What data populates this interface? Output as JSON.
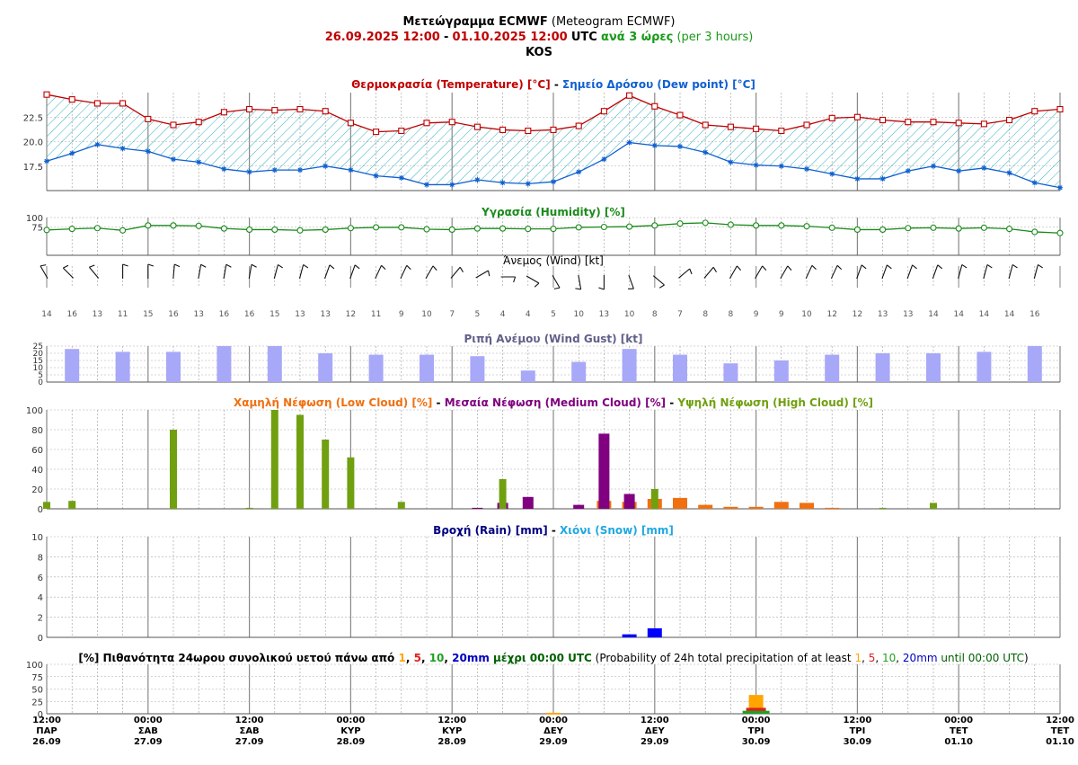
{
  "header": {
    "title_gr": "Μετεώγραμμα ECMWF",
    "title_en": "(Meteogram ECMWF)",
    "date_from": "26.09.2025 12:00",
    "dash": "-",
    "date_to": "01.10.2025 12:00",
    "utc": "UTC",
    "step_gr": "ανά 3 ώρες",
    "step_en": "(per 3 hours)",
    "location": "KOS"
  },
  "colors": {
    "temperature": "#c00000",
    "dewpoint": "#1060d0",
    "hatch": "#30b0c0",
    "humidity": "#1a8a1a",
    "gust": "#a8a8f8",
    "low_cloud": "#f07010",
    "medium_cloud": "#800080",
    "high_cloud": "#70a010",
    "rain": "#0000ff",
    "prob_1mm": "#ffa500",
    "prob_5mm": "#e02020",
    "prob_10mm": "#20a020",
    "prob_20mm": "#0000c0"
  },
  "chart_data": [
    {
      "type": "line",
      "panel": "temperature",
      "title_parts": [
        {
          "text": "Θερμοκρασία (Temperature) [°C]",
          "role": "temperature"
        },
        {
          "text": " - ",
          "role": "sep"
        },
        {
          "text": "Σημείο Δρόσου (Dew point) [°C]",
          "role": "dewpoint"
        }
      ],
      "ylim": [
        15.0,
        25.0
      ],
      "yticks": [
        "17.5",
        "20.0",
        "22.5"
      ],
      "series": [
        {
          "name": "Θερμοκρασία (Temperature) [°C]",
          "values": [
            24.8,
            24.3,
            23.9,
            23.9,
            22.3,
            21.7,
            22.0,
            23.0,
            23.3,
            23.2,
            23.3,
            23.1,
            21.9,
            21.0,
            21.1,
            21.9,
            22.0,
            21.5,
            21.2,
            21.1,
            21.2,
            21.6,
            23.1,
            24.7,
            23.6,
            22.7,
            21.7,
            21.5,
            21.3,
            21.1,
            21.7,
            22.4,
            22.5,
            22.2,
            22.0,
            22.0,
            21.9,
            21.8,
            22.2,
            23.1,
            23.3
          ]
        },
        {
          "name": "Σημείο Δρόσου (Dew point) [°C]",
          "values": [
            18.0,
            18.8,
            19.7,
            19.3,
            19.0,
            18.2,
            17.9,
            17.2,
            16.9,
            17.1,
            17.1,
            17.5,
            17.1,
            16.5,
            16.3,
            15.6,
            15.6,
            16.1,
            15.8,
            15.7,
            15.9,
            16.9,
            18.2,
            19.9,
            19.6,
            19.5,
            18.9,
            17.9,
            17.6,
            17.5,
            17.2,
            16.7,
            16.2,
            16.2,
            17.0,
            17.5,
            17.0,
            17.3,
            16.8,
            15.8,
            15.3
          ]
        }
      ]
    },
    {
      "type": "line",
      "panel": "humidity",
      "title_parts": [
        {
          "text": "Υγρασία (Humidity) [%]",
          "role": "humidity"
        }
      ],
      "ylim": [
        0,
        100
      ],
      "yticks": [
        "75",
        "100"
      ],
      "series": [
        {
          "name": "Υγρασία (Humidity) [%]",
          "values": [
            67,
            70,
            72,
            66,
            79,
            79,
            78,
            71,
            68,
            68,
            66,
            68,
            72,
            74,
            74,
            69,
            68,
            71,
            71,
            70,
            70,
            74,
            75,
            76,
            79,
            84,
            86,
            81,
            79,
            79,
            77,
            73,
            68,
            68,
            72,
            73,
            71,
            73,
            70,
            62,
            59
          ]
        }
      ]
    },
    {
      "type": "table",
      "panel": "wind",
      "title_parts": [
        {
          "text": "Άνεμος (Wind) [kt]",
          "role": "plain"
        }
      ],
      "speeds": [
        "14",
        "16",
        "13",
        "11",
        "15",
        "16",
        "13",
        "16",
        "16",
        "15",
        "13",
        "13",
        "12",
        "11",
        "9",
        "10",
        "7",
        "5",
        "4",
        "4",
        "5",
        "10",
        "13",
        "10",
        "8",
        "7",
        "8",
        "8",
        "9",
        "9",
        "10",
        "12",
        "12",
        "13",
        "13",
        "14",
        "14",
        "14",
        "14",
        "16"
      ],
      "directions_deg": [
        330,
        315,
        320,
        0,
        0,
        5,
        10,
        10,
        10,
        15,
        15,
        20,
        20,
        25,
        25,
        30,
        40,
        60,
        90,
        120,
        150,
        170,
        180,
        160,
        130,
        50,
        40,
        30,
        30,
        30,
        25,
        25,
        20,
        20,
        20,
        20,
        15,
        15,
        15,
        15
      ]
    },
    {
      "type": "bar",
      "panel": "gust",
      "title_parts": [
        {
          "text": "Ριπή Ανέμου (Wind Gust) [kt]",
          "role": "gust"
        }
      ],
      "ylim": [
        0,
        25
      ],
      "yticks": [
        "0",
        "5",
        "10",
        "15",
        "20",
        "25"
      ],
      "values": [
        23,
        21,
        21,
        25,
        25,
        20,
        19,
        19,
        18,
        8,
        14,
        23,
        19,
        13,
        15,
        19,
        20,
        20,
        21,
        25
      ]
    },
    {
      "type": "bar",
      "panel": "clouds",
      "title_parts": [
        {
          "text": "Χαμηλή Νέφωση (Low Cloud) [%]",
          "role": "low_cloud"
        },
        {
          "text": " - ",
          "role": "sep"
        },
        {
          "text": "Μεσαία Νέφωση (Medium Cloud) [%]",
          "role": "medium_cloud"
        },
        {
          "text": " - ",
          "role": "sep"
        },
        {
          "text": "Υψηλή Νέφωση (High Cloud) [%]",
          "role": "high_cloud"
        }
      ],
      "ylim": [
        0,
        100
      ],
      "yticks": [
        "0",
        "20",
        "40",
        "60",
        "80",
        "100"
      ],
      "series": [
        {
          "name": "Χαμηλή Νέφωση (Low Cloud) [%]",
          "values": [
            0,
            0,
            0,
            0,
            0,
            0,
            0,
            0,
            0,
            0,
            0,
            0,
            0,
            0,
            0,
            0,
            0,
            0,
            0,
            0,
            0,
            0,
            8,
            7,
            10,
            11,
            4,
            2,
            2,
            7,
            6,
            1,
            0,
            0,
            0,
            0,
            0,
            0,
            0,
            0,
            0
          ]
        },
        {
          "name": "Μεσαία Νέφωση (Medium Cloud) [%]",
          "values": [
            0,
            0,
            0,
            0,
            0,
            0,
            0,
            0,
            0,
            0,
            0,
            0,
            0,
            0,
            0,
            0,
            0,
            1,
            6,
            12,
            0,
            4,
            76,
            15,
            0,
            0,
            0,
            0,
            0,
            0,
            0,
            0,
            0,
            0,
            0,
            0,
            0,
            0,
            0,
            0,
            0
          ]
        },
        {
          "name": "Υψηλή Νέφωση (High Cloud) [%]",
          "values": [
            7,
            8,
            0,
            0,
            0,
            80,
            0,
            0,
            1,
            100,
            95,
            70,
            52,
            0,
            7,
            0,
            0,
            0,
            30,
            0,
            0,
            0,
            0,
            0,
            20,
            0,
            0,
            0,
            0,
            0,
            0,
            0,
            0,
            1,
            0,
            6,
            0,
            0,
            0,
            0,
            0
          ]
        }
      ]
    },
    {
      "type": "bar",
      "panel": "precipitation",
      "title_parts": [
        {
          "text": "Βροχή (Rain) [mm]",
          "role": "rain_label"
        },
        {
          "text": " - ",
          "role": "sep"
        },
        {
          "text": "Χιόνι (Snow) [mm]",
          "role": "snow_label"
        }
      ],
      "ylim": [
        0,
        10
      ],
      "yticks": [
        "0",
        "2",
        "4",
        "6",
        "8",
        "10"
      ],
      "series": [
        {
          "name": "Βροχή (Rain) [mm]",
          "values": [
            0,
            0,
            0,
            0,
            0,
            0,
            0,
            0,
            0,
            0,
            0,
            0,
            0,
            0,
            0,
            0,
            0,
            0,
            0,
            0,
            0,
            0,
            0,
            0.3,
            0.9,
            0,
            0,
            0,
            0,
            0,
            0,
            0,
            0,
            0,
            0,
            0,
            0,
            0,
            0,
            0,
            0
          ]
        },
        {
          "name": "Χιόνι (Snow) [mm]",
          "values": [
            0,
            0,
            0,
            0,
            0,
            0,
            0,
            0,
            0,
            0,
            0,
            0,
            0,
            0,
            0,
            0,
            0,
            0,
            0,
            0,
            0,
            0,
            0,
            0,
            0,
            0,
            0,
            0,
            0,
            0,
            0,
            0,
            0,
            0,
            0,
            0,
            0,
            0,
            0,
            0,
            0
          ]
        }
      ]
    },
    {
      "type": "bar",
      "panel": "probability",
      "title_parts": [
        {
          "text": "[%] Πιθανότητα 24ωρου συνολικού υετού πάνω από ",
          "role": "bold"
        },
        {
          "text": "1",
          "role": "p1"
        },
        {
          "text": ", ",
          "role": "bold"
        },
        {
          "text": "5",
          "role": "p5"
        },
        {
          "text": ", ",
          "role": "bold"
        },
        {
          "text": "10",
          "role": "p10"
        },
        {
          "text": ", ",
          "role": "bold"
        },
        {
          "text": "20mm",
          "role": "p20"
        },
        {
          "text": " μέχρι 00:00 UTC",
          "role": "bold_green"
        },
        {
          "text": " (Probability of 24h total precipitation of at least ",
          "role": "plain"
        },
        {
          "text": "1",
          "role": "p1n"
        },
        {
          "text": ", ",
          "role": "plain"
        },
        {
          "text": "5",
          "role": "p5n"
        },
        {
          "text": ", ",
          "role": "plain"
        },
        {
          "text": "10",
          "role": "p10n"
        },
        {
          "text": ", ",
          "role": "plain"
        },
        {
          "text": "20mm",
          "role": "p20n"
        },
        {
          "text": " until 00:00 UTC",
          "role": "green_plain"
        },
        {
          "text": ")",
          "role": "plain"
        }
      ],
      "ylim": [
        0,
        100
      ],
      "yticks": [
        "0",
        "25",
        "50",
        "75",
        "100"
      ],
      "categories": [
        "29.09 00:00",
        "30.09 00:00"
      ],
      "series": [
        {
          "name": "1",
          "values": [
            2,
            38
          ]
        },
        {
          "name": "5",
          "values": [
            0,
            12
          ]
        },
        {
          "name": "10",
          "values": [
            0,
            6
          ]
        },
        {
          "name": "20mm",
          "values": [
            0,
            0
          ]
        }
      ]
    }
  ],
  "time_axis": {
    "labels": [
      [
        "12:00",
        "ΠΑΡ",
        "26.09"
      ],
      [
        "00:00",
        "ΣΑΒ",
        "27.09"
      ],
      [
        "12:00",
        "ΣΑΒ",
        "27.09"
      ],
      [
        "00:00",
        "ΚΥΡ",
        "28.09"
      ],
      [
        "12:00",
        "ΚΥΡ",
        "28.09"
      ],
      [
        "00:00",
        "ΔΕΥ",
        "29.09"
      ],
      [
        "12:00",
        "ΔΕΥ",
        "29.09"
      ],
      [
        "00:00",
        "ΤΡΙ",
        "30.09"
      ],
      [
        "12:00",
        "ΤΡΙ",
        "30.09"
      ],
      [
        "00:00",
        "ΤΕΤ",
        "01.10"
      ],
      [
        "12:00",
        "ΤΕΤ",
        "01.10"
      ]
    ]
  }
}
